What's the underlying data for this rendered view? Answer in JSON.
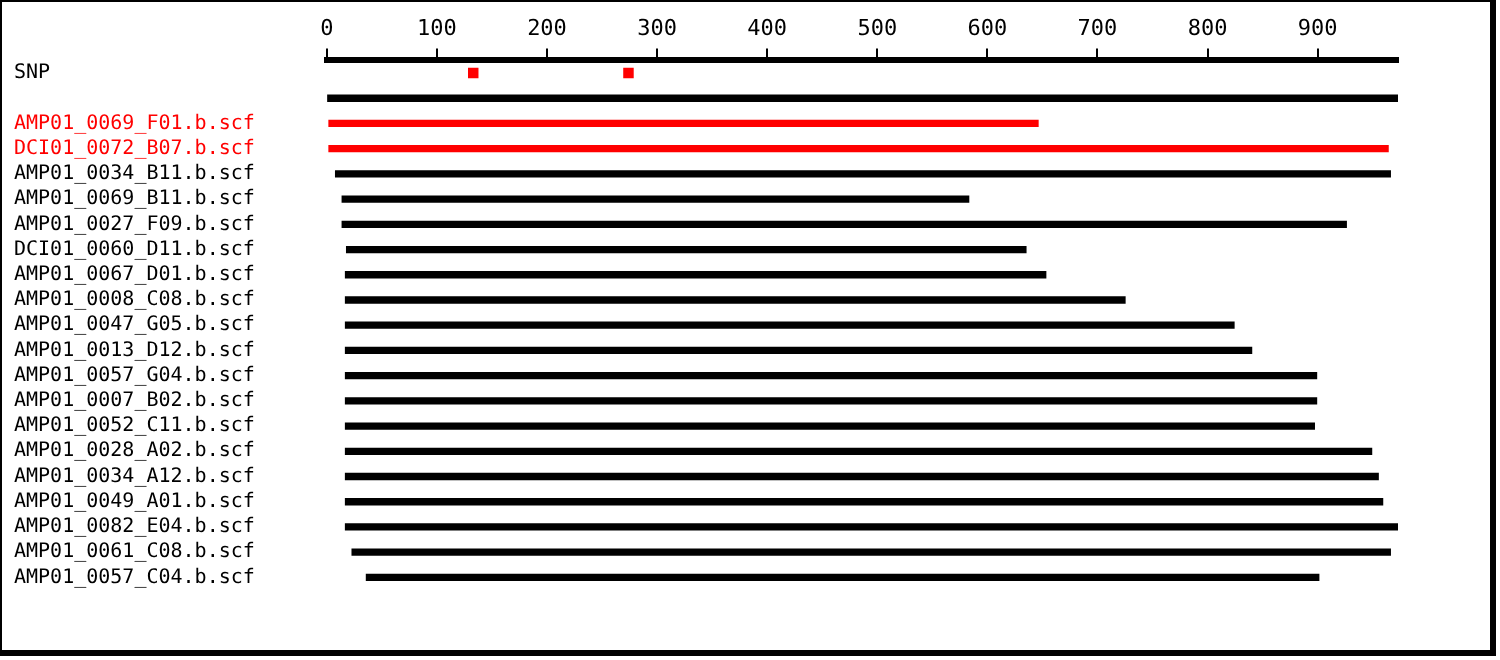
{
  "chart_data": {
    "type": "bar",
    "orientation": "horizontal",
    "categories": [
      "SNP",
      null,
      "AMP01_0069_F01.b.scf",
      "DCI01_0072_B07.b.scf",
      "AMP01_0034_B11.b.scf",
      "AMP01_0069_B11.b.scf",
      "AMP01_0027_F09.b.scf",
      "DCI01_0060_D11.b.scf",
      "AMP01_0067_D01.b.scf",
      "AMP01_0008_C08.b.scf",
      "AMP01_0047_G05.b.scf",
      "AMP01_0013_D12.b.scf",
      "AMP01_0057_G04.b.scf",
      "AMP01_0007_B02.b.scf",
      "AMP01_0052_C11.b.scf",
      "AMP01_0028_A02.b.scf",
      "AMP01_0034_A12.b.scf",
      "AMP01_0049_A01.b.scf",
      "AMP01_0082_E04.b.scf",
      "AMP01_0061_C08.b.scf",
      "AMP01_0057_C04.b.scf"
    ],
    "series": [
      {
        "values": [
          null,
          973,
          644,
          962,
          958,
          569,
          912,
          617,
          636,
          708,
          807,
          823,
          882,
          882,
          880,
          932,
          938,
          942,
          956,
          943,
          865
        ],
        "base": [
          null,
          0,
          2,
          2,
          8,
          14,
          14,
          18,
          17,
          17,
          17,
          17,
          17,
          17,
          17,
          17,
          17,
          17,
          17,
          23,
          36
        ],
        "colors": [
          "#000000",
          "#000000",
          "#ff0000",
          "#ff0000",
          "#000000",
          "#000000",
          "#000000",
          "#000000",
          "#000000",
          "#000000",
          "#000000",
          "#000000",
          "#000000",
          "#000000",
          "#000000",
          "#000000",
          "#000000",
          "#000000",
          "#000000",
          "#000000",
          "#000000"
        ]
      },
      {
        "type": "scatter",
        "marker": "square",
        "color": "#ff0000",
        "x": [
          "SNP",
          "SNP"
        ],
        "values": [
          133,
          274
        ]
      }
    ],
    "xlim": [
      0,
      973
    ],
    "xticks": [
      0,
      100,
      200,
      300,
      400,
      500,
      600,
      700,
      800,
      900
    ],
    "legend": false
  }
}
